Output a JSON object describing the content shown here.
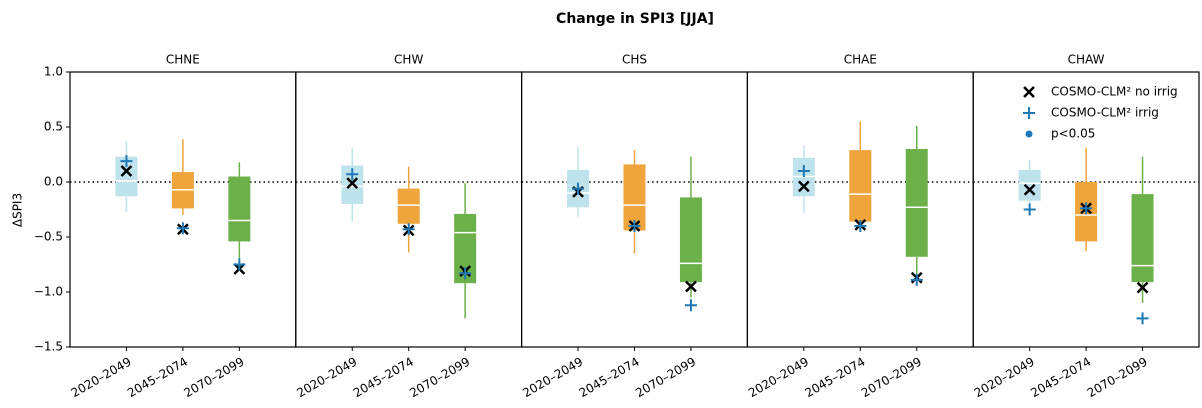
{
  "chart_data": {
    "type": "box",
    "title": "Change in SPI3 [JJA]",
    "ylabel": "ΔSPI3",
    "ylim": [
      -1.5,
      1.0
    ],
    "yticks": [
      {
        "value": -1.5,
        "label": "−1.5"
      },
      {
        "value": -1.0,
        "label": "−1.0"
      },
      {
        "value": -0.5,
        "label": "−0.5"
      },
      {
        "value": 0,
        "label": "0.0"
      },
      {
        "value": 0.5,
        "label": "0.5"
      },
      {
        "value": 1.0,
        "label": "1.0"
      }
    ],
    "hline": 0,
    "categories": [
      "2020–2049",
      "2045–2074",
      "2070–2099"
    ],
    "colors": [
      "#bfe3ec",
      "#f0a43c",
      "#6cb04a"
    ],
    "legend_position": "upper right",
    "markers": [
      {
        "name": "COSMO-CLM² no irrig",
        "color": "#000000",
        "symbol": "x"
      },
      {
        "name": "COSMO-CLM² irrig",
        "color": "#1f77b4",
        "symbol": "plus"
      },
      {
        "name": "p<0.05",
        "color": "#1f77b4",
        "symbol": "dot"
      }
    ],
    "panels": [
      {
        "title": "CHNE",
        "boxes": [
          {
            "whislo": -0.27,
            "q1": -0.13,
            "med": 0.01,
            "q3": 0.23,
            "whishi": 0.37
          },
          {
            "whislo": -0.3,
            "q1": -0.24,
            "med": -0.07,
            "q3": 0.09,
            "whishi": 0.39
          },
          {
            "whislo": -0.7,
            "q1": -0.54,
            "med": -0.35,
            "q3": 0.05,
            "whishi": 0.18
          }
        ],
        "marker_values": [
          [
            0.1,
            -0.43,
            -0.79
          ],
          [
            0.19,
            -0.42,
            -0.75
          ]
        ]
      },
      {
        "title": "CHW",
        "boxes": [
          {
            "whislo": -0.36,
            "q1": -0.2,
            "med": -0.04,
            "q3": 0.15,
            "whishi": 0.31
          },
          {
            "whislo": -0.64,
            "q1": -0.38,
            "med": -0.21,
            "q3": -0.06,
            "whishi": 0.14
          },
          {
            "whislo": -1.24,
            "q1": -0.92,
            "med": -0.46,
            "q3": -0.29,
            "whishi": -0.01
          }
        ],
        "marker_values": [
          [
            -0.01,
            -0.44,
            -0.81
          ],
          [
            0.07,
            -0.43,
            -0.83
          ]
        ]
      },
      {
        "title": "CHS",
        "boxes": [
          {
            "whislo": -0.32,
            "q1": -0.23,
            "med": -0.1,
            "q3": 0.11,
            "whishi": 0.32
          },
          {
            "whislo": -0.65,
            "q1": -0.44,
            "med": -0.21,
            "q3": 0.16,
            "whishi": 0.29
          },
          {
            "whislo": -1.05,
            "q1": -0.91,
            "med": -0.74,
            "q3": -0.14,
            "whishi": 0.23
          }
        ],
        "marker_values": [
          [
            -0.09,
            -0.4,
            -0.95
          ],
          [
            -0.06,
            -0.4,
            -1.12
          ]
        ]
      },
      {
        "title": "CHAE",
        "boxes": [
          {
            "whislo": -0.28,
            "q1": -0.13,
            "med": 0.05,
            "q3": 0.22,
            "whishi": 0.33
          },
          {
            "whislo": -0.4,
            "q1": -0.36,
            "med": -0.11,
            "q3": 0.29,
            "whishi": 0.55
          },
          {
            "whislo": -0.85,
            "q1": -0.68,
            "med": -0.23,
            "q3": 0.3,
            "whishi": 0.51
          }
        ],
        "marker_values": [
          [
            -0.04,
            -0.39,
            -0.87
          ],
          [
            0.1,
            -0.4,
            -0.89
          ]
        ]
      },
      {
        "title": "CHAW",
        "boxes": [
          {
            "whislo": -0.23,
            "q1": -0.17,
            "med": -0.01,
            "q3": 0.11,
            "whishi": 0.2
          },
          {
            "whislo": -0.63,
            "q1": -0.54,
            "med": -0.3,
            "q3": 0.0,
            "whishi": 0.31
          },
          {
            "whislo": -1.1,
            "q1": -0.91,
            "med": -0.76,
            "q3": -0.11,
            "whishi": 0.23
          }
        ],
        "marker_values": [
          [
            -0.07,
            -0.24,
            -0.96
          ],
          [
            -0.25,
            -0.24,
            -1.24
          ]
        ]
      }
    ]
  }
}
